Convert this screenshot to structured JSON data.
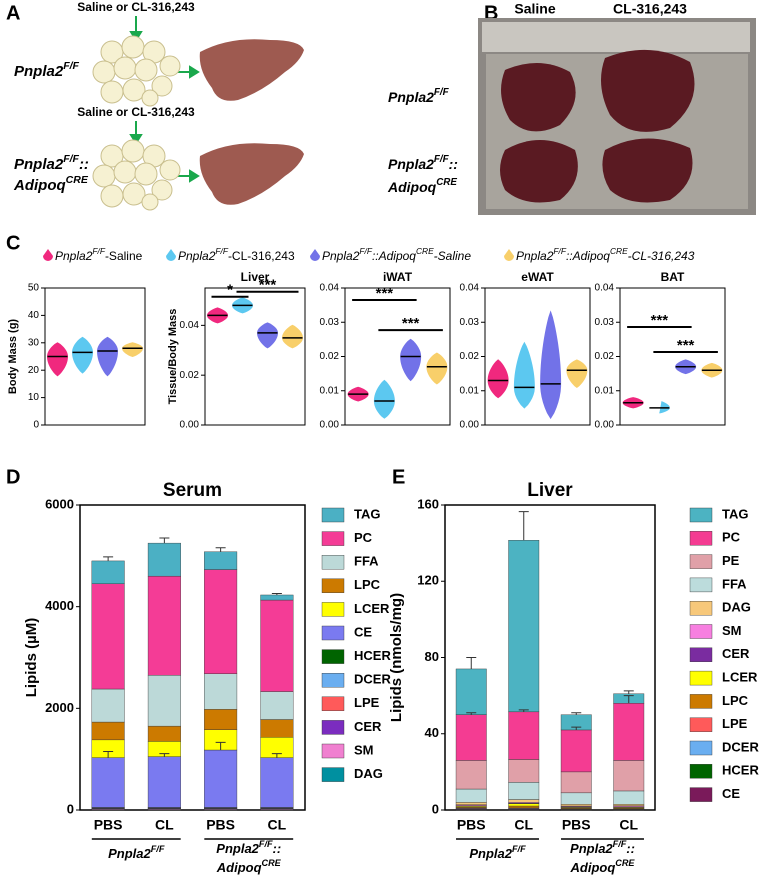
{
  "panel_labels": [
    "A",
    "B",
    "C",
    "D",
    "E"
  ],
  "treatments": [
    "Saline or CL-316,243",
    "Saline or CL-316,243"
  ],
  "photo_columns": [
    "Saline",
    "CL-316,243"
  ],
  "genotypes": [
    {
      "lines": [
        [
          {
            "t": "Pnpla2"
          },
          {
            "t": "F/F",
            "sup": true
          }
        ]
      ]
    },
    {
      "lines": [
        [
          {
            "t": "Pnpla2"
          },
          {
            "t": "F/F",
            "sup": true
          },
          {
            "t": "::"
          }
        ],
        [
          {
            "t": "Adipoq"
          },
          {
            "t": "CRE",
            "sup": true
          }
        ]
      ]
    }
  ],
  "violin_legend": [
    {
      "color": "#f0287e",
      "parts": [
        {
          "t": "Pnpla2",
          "italic": true
        },
        {
          "t": "F/F",
          "sup": true,
          "italic": true
        },
        {
          "t": "-Saline"
        }
      ]
    },
    {
      "color": "#5cc8f0",
      "parts": [
        {
          "t": "Pnpla2",
          "italic": true
        },
        {
          "t": "F/F",
          "sup": true,
          "italic": true
        },
        {
          "t": "-CL-316,243"
        }
      ]
    },
    {
      "color": "#7272e8",
      "parts": [
        {
          "t": "Pnpla2",
          "italic": true
        },
        {
          "t": "F/F",
          "sup": true,
          "italic": true
        },
        {
          "t": "::Adipoq",
          "italic": true
        },
        {
          "t": "CRE",
          "sup": true,
          "italic": true
        },
        {
          "t": "-Saline",
          "italic": true
        }
      ]
    },
    {
      "color": "#f8cf6a",
      "parts": [
        {
          "t": "Pnpla2",
          "italic": true
        },
        {
          "t": "F/F",
          "sup": true,
          "italic": true
        },
        {
          "t": "::Adipoq",
          "italic": true
        },
        {
          "t": "CRE",
          "sup": true,
          "italic": true
        },
        {
          "t": "-CL-316,243",
          "italic": true
        }
      ]
    }
  ],
  "chart_data": [
    {
      "type": "violin",
      "ylabel": "Body Mass (g)",
      "ylim": [
        0,
        50
      ],
      "yticks": [
        0,
        10,
        20,
        30,
        40,
        50
      ],
      "medians": [
        25,
        26.5,
        27,
        28
      ],
      "mins": [
        18,
        19,
        18,
        25
      ],
      "maxs": [
        30,
        32,
        32,
        30
      ],
      "annotations": []
    },
    {
      "type": "violin",
      "title": "Liver",
      "ylabel": "Tissue/Body Mass",
      "ylim": [
        0,
        0.055
      ],
      "yticks": [
        {
          "value": 0,
          "label": "0.00"
        },
        {
          "value": 0.02,
          "label": "0.02"
        },
        {
          "value": 0.04,
          "label": "0.04"
        }
      ],
      "medians": [
        0.044,
        0.048,
        0.037,
        0.035
      ],
      "mins": [
        0.041,
        0.045,
        0.031,
        0.031
      ],
      "maxs": [
        0.047,
        0.051,
        0.041,
        0.04
      ],
      "annotations": [
        {
          "text": "*",
          "from": 0,
          "to": 1,
          "y": 0.0515
        },
        {
          "text": "***",
          "from": 1,
          "to": 3,
          "y": 0.0535
        }
      ]
    },
    {
      "type": "violin",
      "title": "iWAT",
      "ylim": [
        0,
        0.04
      ],
      "yticks": [
        {
          "value": 0,
          "label": "0.00"
        },
        {
          "value": 0.01,
          "label": "0.01"
        },
        {
          "value": 0.02,
          "label": "0.02"
        },
        {
          "value": 0.03,
          "label": "0.03"
        },
        {
          "value": 0.04,
          "label": "0.04"
        }
      ],
      "medians": [
        0.009,
        0.007,
        0.02,
        0.017
      ],
      "mins": [
        0.007,
        0.002,
        0.013,
        0.012
      ],
      "maxs": [
        0.011,
        0.013,
        0.025,
        0.021
      ],
      "annotations": [
        {
          "text": "***",
          "from": 0,
          "to": 2,
          "y": 0.0365
        },
        {
          "text": "***",
          "from": 1,
          "to": 3,
          "y": 0.0277
        }
      ]
    },
    {
      "type": "violin",
      "title": "eWAT",
      "ylim": [
        0,
        0.04
      ],
      "yticks": [
        {
          "value": 0,
          "label": "0.00"
        },
        {
          "value": 0.01,
          "label": "0.01"
        },
        {
          "value": 0.02,
          "label": "0.02"
        },
        {
          "value": 0.03,
          "label": "0.03"
        },
        {
          "value": 0.04,
          "label": "0.04"
        }
      ],
      "medians": [
        0.013,
        0.011,
        0.012,
        0.016
      ],
      "mins": [
        0.008,
        0.005,
        0.002,
        0.011
      ],
      "maxs": [
        0.019,
        0.024,
        0.033,
        0.019
      ],
      "annotations": []
    },
    {
      "type": "violin",
      "title": "BAT",
      "ylim": [
        0,
        0.04
      ],
      "yticks": [
        {
          "value": 0,
          "label": "0.00"
        },
        {
          "value": 0.01,
          "label": "0.01"
        },
        {
          "value": 0.02,
          "label": "0.02"
        },
        {
          "value": 0.03,
          "label": "0.03"
        },
        {
          "value": 0.04,
          "label": "0.04"
        }
      ],
      "medians": [
        0.0065,
        0.005,
        0.017,
        0.016
      ],
      "mins": [
        0.005,
        0.0035,
        0.015,
        0.014
      ],
      "maxs": [
        0.008,
        0.007,
        0.019,
        0.018
      ],
      "annotations": [
        {
          "text": "***",
          "from": 0,
          "to": 2,
          "y": 0.0286
        },
        {
          "text": "***",
          "from": 1,
          "to": 3,
          "y": 0.0213
        }
      ]
    },
    {
      "type": "stacked_bar",
      "title": "Serum",
      "ylabel": "Lipids (µM)",
      "ylim": [
        0,
        6000
      ],
      "yticks": [
        0,
        2000,
        4000,
        6000
      ],
      "categories": [
        "PBS",
        "CL",
        "PBS",
        "CL"
      ],
      "series": [
        {
          "name": "TAG",
          "color": "#4bb0c4",
          "values": [
            450,
            650,
            350,
            100
          ],
          "errors": [
            80,
            100,
            80,
            30
          ]
        },
        {
          "name": "PC",
          "color": "#f43c96",
          "values": [
            2070,
            1950,
            2050,
            1800
          ]
        },
        {
          "name": "FFA",
          "color": "#bcd9d8",
          "values": [
            650,
            1000,
            700,
            550
          ]
        },
        {
          "name": "LPC",
          "color": "#cc7a00",
          "values": [
            350,
            300,
            400,
            350
          ]
        },
        {
          "name": "LCER",
          "color": "#ffff00",
          "values": [
            350,
            300,
            400,
            400
          ]
        },
        {
          "name": "CE",
          "color": "#7a7af0",
          "values": [
            980,
            1000,
            1130,
            980
          ],
          "errors": [
            120,
            60,
            150,
            80
          ]
        },
        {
          "name": "HCER",
          "color": "#006400",
          "values": [
            5,
            5,
            5,
            5
          ]
        },
        {
          "name": "DCER",
          "color": "#6aaef0",
          "values": [
            10,
            10,
            10,
            10
          ]
        },
        {
          "name": "LPE",
          "color": "#ff5a5a",
          "values": [
            5,
            5,
            5,
            5
          ]
        },
        {
          "name": "CER",
          "color": "#7b2cbf",
          "values": [
            5,
            5,
            5,
            5
          ]
        },
        {
          "name": "SM",
          "color": "#f080d0",
          "values": [
            15,
            15,
            15,
            15
          ]
        },
        {
          "name": "DAG",
          "color": "#0090a0",
          "values": [
            10,
            10,
            10,
            10
          ]
        }
      ]
    },
    {
      "type": "stacked_bar",
      "title": "Liver",
      "ylabel": "Lipids (nmols/mg)",
      "ylim": [
        0,
        160
      ],
      "yticks": [
        0,
        40,
        80,
        120,
        160
      ],
      "categories": [
        "PBS",
        "CL",
        "PBS",
        "CL"
      ],
      "series": [
        {
          "name": "TAG",
          "color": "#4cb3c2",
          "values": [
            24,
            90,
            8,
            5
          ],
          "errors": [
            6,
            15,
            1,
            1.5
          ]
        },
        {
          "name": "PC",
          "color": "#f43c92",
          "values": [
            24,
            25,
            22,
            30
          ],
          "errors": [
            1,
            1,
            1.5,
            4
          ]
        },
        {
          "name": "PE",
          "color": "#e0a0a8",
          "values": [
            15,
            12,
            11,
            16
          ]
        },
        {
          "name": "FFA",
          "color": "#bcdcdc",
          "values": [
            7,
            9,
            6,
            7
          ]
        },
        {
          "name": "DAG",
          "color": "#f7c87a",
          "values": [
            1.2,
            1.5,
            0.9,
            0.8
          ]
        },
        {
          "name": "SM",
          "color": "#f77fe0",
          "values": [
            0.5,
            0.5,
            0.4,
            0.5
          ]
        },
        {
          "name": "CER",
          "color": "#7a2ca0",
          "values": [
            0.2,
            0.2,
            0.2,
            0.2
          ]
        },
        {
          "name": "LCER",
          "color": "#ffff00",
          "values": [
            0.5,
            1.2,
            0.4,
            0.4
          ]
        },
        {
          "name": "LPC",
          "color": "#cc7a00",
          "values": [
            0.5,
            1,
            0.4,
            0.4
          ]
        },
        {
          "name": "LPE",
          "color": "#ff5a5a",
          "values": [
            0.3,
            0.3,
            0.2,
            0.2
          ]
        },
        {
          "name": "DCER",
          "color": "#6aaef0",
          "values": [
            0.3,
            0.3,
            0.2,
            0.2
          ]
        },
        {
          "name": "HCER",
          "color": "#006400",
          "values": [
            0.2,
            0.2,
            0.1,
            0.1
          ]
        },
        {
          "name": "CE",
          "color": "#7a1a5a",
          "values": [
            0.3,
            0.3,
            0.2,
            0.2
          ]
        }
      ]
    }
  ]
}
